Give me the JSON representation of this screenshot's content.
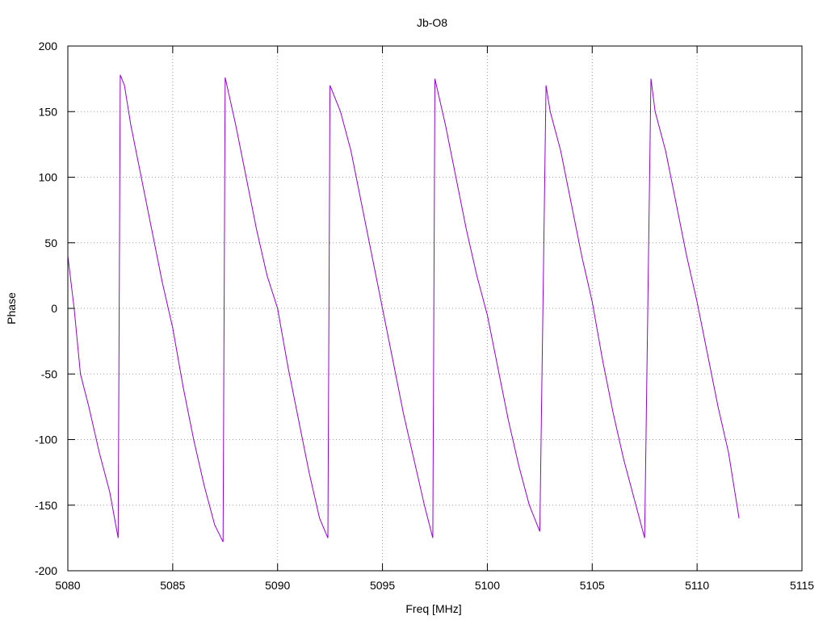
{
  "chart_data": {
    "type": "line",
    "title": "Jb-O8",
    "xlabel": "Freq [MHz]",
    "ylabel": "Phase",
    "xlim": [
      5080,
      5115
    ],
    "ylim": [
      -200,
      200
    ],
    "x_ticks": [
      "5080",
      "5085",
      "5090",
      "5095",
      "5100",
      "5105",
      "5110",
      "5115"
    ],
    "y_ticks": [
      "200",
      "150",
      "100",
      "50",
      "0",
      "-50",
      "-100",
      "-150",
      "-200"
    ],
    "grid": true,
    "legend": "none",
    "series_color": "#9400d3",
    "series": [
      {
        "x": [
          5080.0,
          5080.3,
          5080.6,
          5081.0,
          5081.5,
          5082.0,
          5082.4,
          5082.5,
          5082.7,
          5083.0,
          5083.5,
          5084.0,
          5084.5,
          5085.0,
          5085.5,
          5086.0,
          5086.5,
          5087.0,
          5087.4,
          5087.5,
          5088.0,
          5088.5,
          5089.0,
          5089.5,
          5090.0,
          5090.5,
          5091.0,
          5091.5,
          5092.0,
          5092.4,
          5092.5,
          5093.0,
          5093.5,
          5094.0,
          5094.5,
          5095.0,
          5095.5,
          5096.0,
          5096.5,
          5097.0,
          5097.4,
          5097.5,
          5098.0,
          5098.5,
          5099.0,
          5099.5,
          5100.0,
          5100.5,
          5101.0,
          5101.5,
          5102.0,
          5102.5,
          5102.8,
          5103.0,
          5103.5,
          5104.0,
          5104.5,
          5105.0,
          5105.5,
          5106.0,
          5106.5,
          5107.0,
          5107.5,
          5107.8,
          5108.0,
          5108.5,
          5109.0,
          5109.5,
          5110.0,
          5110.5,
          5111.0,
          5111.5,
          5112.0
        ],
        "y": [
          40,
          0,
          -50,
          -75,
          -110,
          -140,
          -175,
          178,
          170,
          140,
          100,
          60,
          20,
          -15,
          -60,
          -100,
          -135,
          -165,
          -178,
          176,
          140,
          100,
          60,
          25,
          0,
          -45,
          -85,
          -125,
          -160,
          -175,
          170,
          150,
          120,
          80,
          40,
          0,
          -40,
          -80,
          -115,
          -150,
          -175,
          175,
          140,
          100,
          60,
          25,
          -5,
          -45,
          -85,
          -120,
          -150,
          -170,
          170,
          150,
          120,
          80,
          40,
          5,
          -40,
          -80,
          -115,
          -145,
          -175,
          175,
          150,
          120,
          80,
          40,
          5,
          -35,
          -75,
          -110,
          -160
        ]
      }
    ]
  }
}
